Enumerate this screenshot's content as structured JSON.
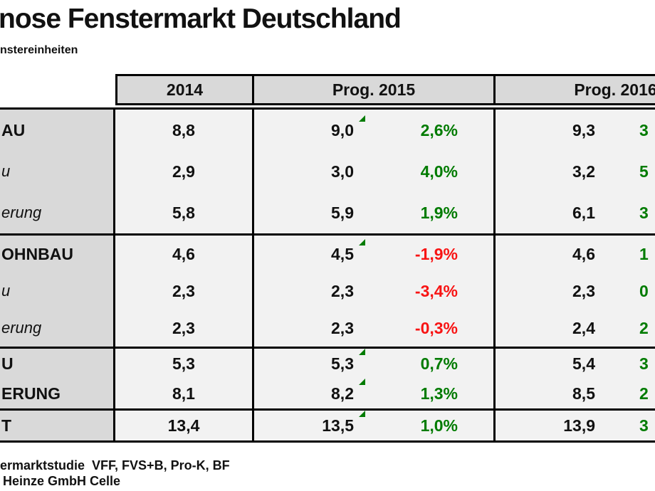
{
  "title": "nose Fenstermarkt Deutschland",
  "subtitle": "nstereinheiten",
  "colors": {
    "positive": "#007b00",
    "negative": "#f81414",
    "header_bg": "#d9d9d9",
    "cell_bg": "#f2f2f2",
    "border": "#000000"
  },
  "table": {
    "headers": [
      "2014",
      "Prog. 2015",
      "Prog. 2016"
    ],
    "groups": [
      {
        "rows": [
          {
            "label": "AU",
            "label_style": "bold",
            "v2014": "8,8",
            "v2015": "9,0",
            "marker": true,
            "pct2015": "2,6%",
            "trend2015": "positive",
            "v2016": "9,3",
            "pct2016_fragment": "3",
            "trend2016": "positive"
          },
          {
            "label": "u",
            "label_style": "italic",
            "v2014": "2,9",
            "v2015": "3,0",
            "marker": false,
            "pct2015": "4,0%",
            "trend2015": "positive",
            "v2016": "3,2",
            "pct2016_fragment": "5",
            "trend2016": "positive"
          },
          {
            "label": "erung",
            "label_style": "italic",
            "v2014": "5,8",
            "v2015": "5,9",
            "marker": false,
            "pct2015": "1,9%",
            "trend2015": "positive",
            "v2016": "6,1",
            "pct2016_fragment": "3",
            "trend2016": "positive"
          }
        ]
      },
      {
        "rows": [
          {
            "label": "OHNBAU",
            "label_style": "bold",
            "v2014": "4,6",
            "v2015": "4,5",
            "marker": true,
            "pct2015": "-1,9%",
            "trend2015": "negative",
            "v2016": "4,6",
            "pct2016_fragment": "1",
            "trend2016": "positive"
          },
          {
            "label": "u",
            "label_style": "italic",
            "v2014": "2,3",
            "v2015": "2,3",
            "marker": false,
            "pct2015": "-3,4%",
            "trend2015": "negative",
            "v2016": "2,3",
            "pct2016_fragment": "0",
            "trend2016": "positive"
          },
          {
            "label": "erung",
            "label_style": "italic",
            "v2014": "2,3",
            "v2015": "2,3",
            "marker": false,
            "pct2015": "-0,3%",
            "trend2015": "negative",
            "v2016": "2,4",
            "pct2016_fragment": "2",
            "trend2016": "positive"
          }
        ]
      },
      {
        "rows": [
          {
            "label": "U",
            "label_style": "bold",
            "v2014": "5,3",
            "v2015": "5,3",
            "marker": true,
            "pct2015": "0,7%",
            "trend2015": "positive",
            "v2016": "5,4",
            "pct2016_fragment": "3",
            "trend2016": "positive"
          },
          {
            "label": "ERUNG",
            "label_style": "bold",
            "v2014": "8,1",
            "v2015": "8,2",
            "marker": true,
            "pct2015": "1,3%",
            "trend2015": "positive",
            "v2016": "8,5",
            "pct2016_fragment": "2",
            "trend2016": "positive"
          }
        ]
      },
      {
        "rows": [
          {
            "label": "T",
            "label_style": "bold",
            "v2014": "13,4",
            "v2015": "13,5",
            "marker": true,
            "pct2015": "1,0%",
            "trend2015": "positive",
            "v2016": "13,9",
            "pct2016_fragment": "3",
            "trend2016": "positive"
          }
        ]
      }
    ]
  },
  "footer": {
    "line1": "ermarktstudie  VFF, FVS+B, Pro-K, BF",
    "line2": "Heinze GmbH Celle"
  }
}
